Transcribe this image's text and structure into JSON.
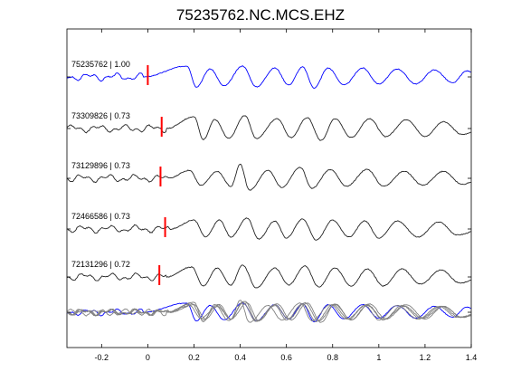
{
  "chart_data": {
    "type": "line",
    "title": "75235762.NC.MCS.EHZ",
    "xlabel": "",
    "ylabel": "",
    "xlim": [
      -0.35,
      1.4
    ],
    "xticks": [
      -0.2,
      0,
      0.2,
      0.4,
      0.6,
      0.8,
      1,
      1.2,
      1.4
    ],
    "xtick_labels": [
      "-0.2",
      "0",
      "0.2",
      "0.4",
      "0.6",
      "0.8",
      "1",
      "1.2",
      "1.4"
    ],
    "grid": false,
    "legend": "none",
    "colors": {
      "reference": "#0000ff",
      "match": "#222222",
      "overlay": "#808080",
      "pick": "#ff0000"
    },
    "traces": [
      {
        "label": "75235762 | 1.00",
        "pick_time": 0.0,
        "color": "#0000ff",
        "onset": -0.02,
        "seed": 3,
        "peaks": [
          [
            0.17,
            0.55
          ],
          [
            0.21,
            -0.5
          ],
          [
            0.27,
            0.4
          ],
          [
            0.33,
            -0.45
          ],
          [
            0.41,
            0.55
          ],
          [
            0.47,
            -0.5
          ],
          [
            0.55,
            0.45
          ],
          [
            0.61,
            -0.4
          ],
          [
            0.67,
            0.5
          ],
          [
            0.72,
            -0.55
          ],
          [
            0.78,
            0.45
          ],
          [
            0.85,
            -0.4
          ],
          [
            0.93,
            0.45
          ],
          [
            1.0,
            -0.35
          ],
          [
            1.08,
            0.4
          ],
          [
            1.16,
            -0.35
          ],
          [
            1.24,
            0.35
          ],
          [
            1.32,
            -0.3
          ],
          [
            1.38,
            0.3
          ]
        ]
      },
      {
        "label": "73309826 | 0.73",
        "pick_time": 0.06,
        "color": "#222222",
        "onset": 0.08,
        "seed": 7,
        "peaks": [
          [
            0.2,
            0.6
          ],
          [
            0.24,
            -0.55
          ],
          [
            0.29,
            0.45
          ],
          [
            0.35,
            -0.5
          ],
          [
            0.42,
            0.65
          ],
          [
            0.47,
            -0.5
          ],
          [
            0.56,
            0.5
          ],
          [
            0.62,
            -0.45
          ],
          [
            0.69,
            0.55
          ],
          [
            0.75,
            -0.6
          ],
          [
            0.81,
            0.5
          ],
          [
            0.88,
            -0.45
          ],
          [
            0.96,
            0.5
          ],
          [
            1.03,
            -0.4
          ],
          [
            1.12,
            0.45
          ],
          [
            1.2,
            -0.4
          ],
          [
            1.28,
            0.35
          ],
          [
            1.36,
            -0.3
          ]
        ]
      },
      {
        "label": "73129896 | 0.73",
        "pick_time": 0.055,
        "color": "#222222",
        "onset": 0.09,
        "seed": 11,
        "peaks": [
          [
            0.18,
            0.4
          ],
          [
            0.23,
            -0.35
          ],
          [
            0.3,
            0.35
          ],
          [
            0.36,
            -0.4
          ],
          [
            0.4,
            0.7
          ],
          [
            0.44,
            -0.6
          ],
          [
            0.52,
            0.4
          ],
          [
            0.58,
            -0.45
          ],
          [
            0.66,
            0.55
          ],
          [
            0.71,
            -0.5
          ],
          [
            0.79,
            0.45
          ],
          [
            0.86,
            -0.4
          ],
          [
            0.95,
            0.45
          ],
          [
            1.02,
            -0.4
          ],
          [
            1.11,
            0.35
          ],
          [
            1.19,
            -0.35
          ],
          [
            1.28,
            0.35
          ],
          [
            1.36,
            -0.3
          ]
        ]
      },
      {
        "label": "72466586 | 0.73",
        "pick_time": 0.075,
        "color": "#222222",
        "onset": 0.1,
        "seed": 17,
        "peaks": [
          [
            0.2,
            0.45
          ],
          [
            0.25,
            -0.4
          ],
          [
            0.31,
            0.45
          ],
          [
            0.36,
            -0.4
          ],
          [
            0.43,
            0.55
          ],
          [
            0.48,
            -0.5
          ],
          [
            0.55,
            0.4
          ],
          [
            0.6,
            -0.45
          ],
          [
            0.67,
            0.5
          ],
          [
            0.73,
            -0.55
          ],
          [
            0.8,
            0.45
          ],
          [
            0.87,
            -0.4
          ],
          [
            0.94,
            0.4
          ],
          [
            1.0,
            -0.45
          ],
          [
            1.08,
            0.4
          ],
          [
            1.17,
            -0.4
          ],
          [
            1.26,
            0.35
          ],
          [
            1.34,
            -0.3
          ]
        ]
      },
      {
        "label": "72131296 | 0.72",
        "pick_time": 0.05,
        "color": "#222222",
        "onset": 0.08,
        "seed": 23,
        "peaks": [
          [
            0.19,
            0.5
          ],
          [
            0.24,
            -0.45
          ],
          [
            0.3,
            0.45
          ],
          [
            0.36,
            -0.4
          ],
          [
            0.41,
            0.6
          ],
          [
            0.47,
            -0.55
          ],
          [
            0.55,
            0.45
          ],
          [
            0.61,
            -0.4
          ],
          [
            0.68,
            0.55
          ],
          [
            0.74,
            -0.5
          ],
          [
            0.81,
            0.45
          ],
          [
            0.88,
            -0.45
          ],
          [
            0.95,
            0.4
          ],
          [
            1.02,
            -0.45
          ],
          [
            1.1,
            0.4
          ],
          [
            1.18,
            -0.35
          ],
          [
            1.27,
            0.35
          ],
          [
            1.35,
            -0.3
          ]
        ]
      }
    ]
  }
}
